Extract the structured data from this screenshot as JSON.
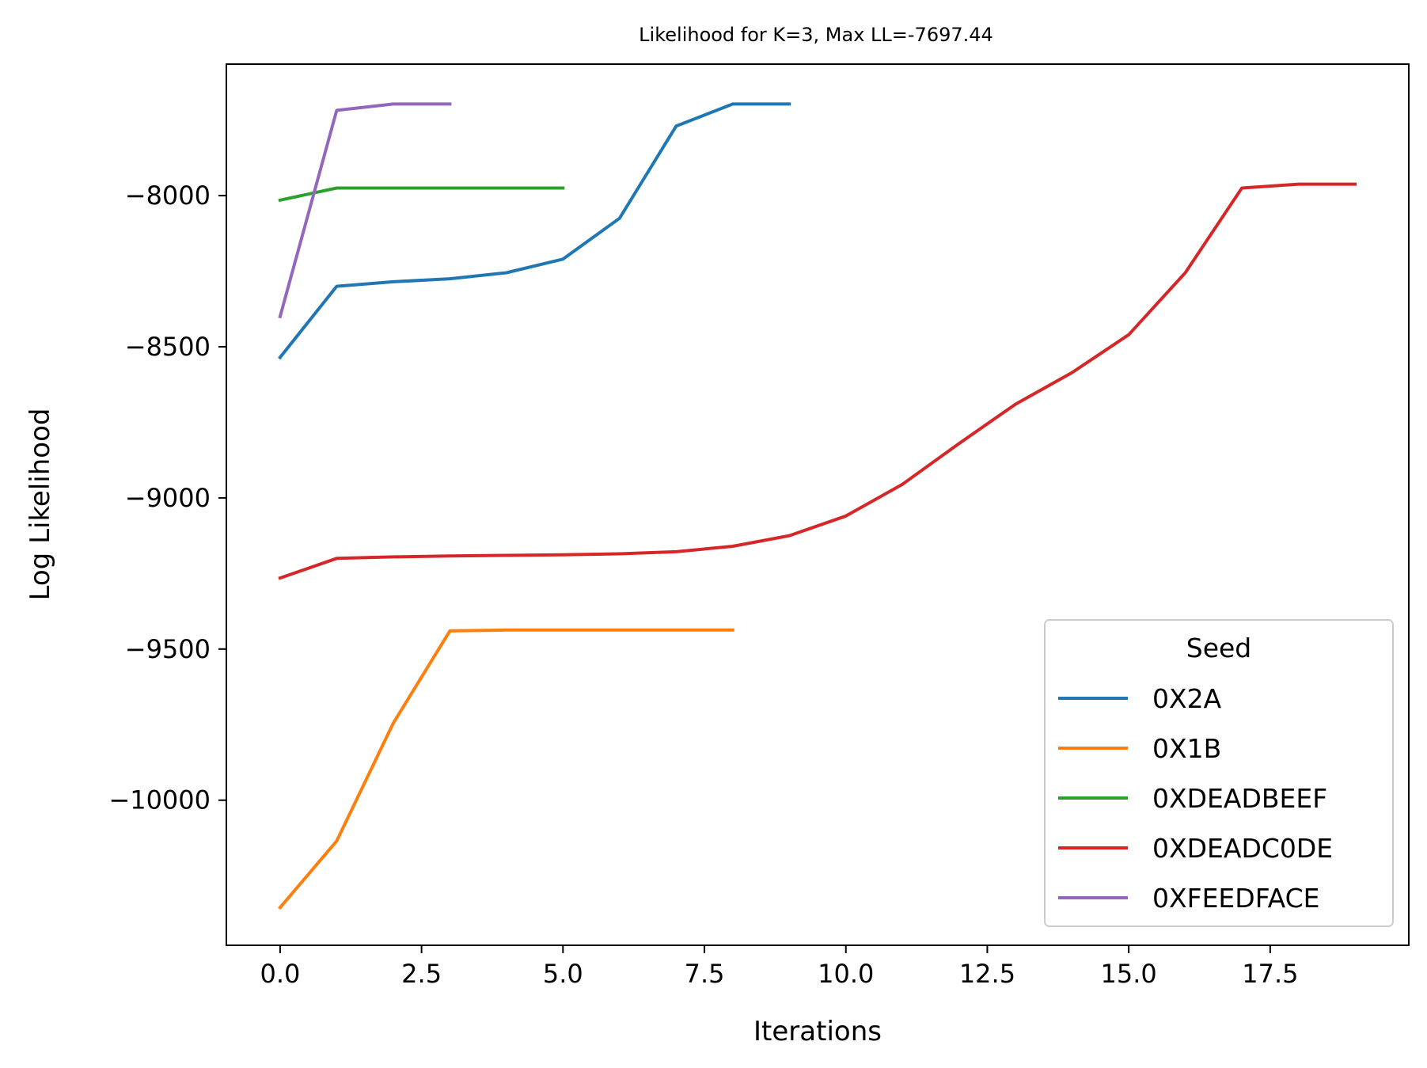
{
  "chart_data": {
    "type": "line",
    "title": "Likelihood for K=3,  Max LL=-7697.44",
    "xlabel": "Iterations",
    "ylabel": "Log Likelihood",
    "xlim": [
      -0.95,
      19.95
    ],
    "ylim": [
      -10480,
      -7565
    ],
    "xticks": [
      0,
      2.5,
      5,
      7.5,
      10,
      12.5,
      15,
      17.5
    ],
    "xtick_labels": [
      "0.0",
      "2.5",
      "5.0",
      "7.5",
      "10.0",
      "12.5",
      "15.0",
      "17.5"
    ],
    "yticks": [
      -8000,
      -8500,
      -9000,
      -9500,
      -10000
    ],
    "ytick_labels": [
      "−8000",
      "−8500",
      "−9000",
      "−9500",
      "−10000"
    ],
    "grid": false,
    "legend": {
      "title": "Seed",
      "position": "lower-right"
    },
    "series": [
      {
        "name": "0X2A",
        "color": "#1f77b4",
        "x": [
          0,
          1,
          2,
          3,
          4,
          5,
          6,
          7,
          8,
          9
        ],
        "y": [
          -8535,
          -8300,
          -8285,
          -8275,
          -8255,
          -8210,
          -8075,
          -7770,
          -7697,
          -7697
        ]
      },
      {
        "name": "0X1B",
        "color": "#ff7f0e",
        "x": [
          0,
          1,
          2,
          3,
          4,
          5,
          6,
          7,
          8
        ],
        "y": [
          -10355,
          -10135,
          -9745,
          -9440,
          -9437,
          -9437,
          -9437,
          -9437,
          -9437
        ]
      },
      {
        "name": "0XDEADBEEF",
        "color": "#2ca02c",
        "x": [
          0,
          1,
          2,
          3,
          4,
          5
        ],
        "y": [
          -8015,
          -7975,
          -7975,
          -7975,
          -7975,
          -7975
        ]
      },
      {
        "name": "0XDEADC0DE",
        "color": "#d62728",
        "x": [
          0,
          1,
          2,
          3,
          4,
          5,
          6,
          7,
          8,
          9,
          10,
          11,
          12,
          13,
          14,
          15,
          16,
          17,
          18,
          19
        ],
        "y": [
          -9265,
          -9200,
          -9195,
          -9192,
          -9190,
          -9188,
          -9185,
          -9178,
          -9160,
          -9125,
          -9060,
          -8955,
          -8820,
          -8690,
          -8585,
          -8460,
          -8255,
          -7975,
          -7962,
          -7962
        ]
      },
      {
        "name": "0XFEEDFACE",
        "color": "#9467bd",
        "x": [
          0,
          1,
          2,
          3
        ],
        "y": [
          -8400,
          -7718,
          -7697,
          -7697
        ]
      }
    ]
  }
}
